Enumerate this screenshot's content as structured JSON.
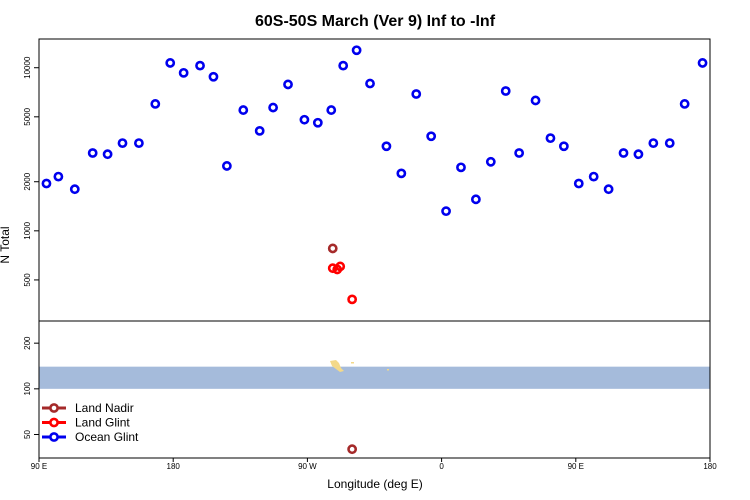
{
  "chart_data": {
    "type": "scatter",
    "title": "60S-50S March (Ver 9)   Inf to -Inf",
    "xlabel": "Longitude (deg E)",
    "ylabel": "N Total",
    "x_ticks": [
      {
        "value": 90,
        "label": "90 E"
      },
      {
        "value": 180,
        "label": "180"
      },
      {
        "value": 270,
        "label": "90 W"
      },
      {
        "value": 360,
        "label": "0"
      },
      {
        "value": 450,
        "label": "90 E"
      },
      {
        "value": 540,
        "label": "180"
      }
    ],
    "xlim": [
      90,
      540
    ],
    "y_scale": "log",
    "upper_panel": {
      "ylim": [
        280,
        15000
      ],
      "y_ticks": [
        500,
        1000,
        2000,
        5000,
        10000
      ]
    },
    "lower_panel": {
      "ylim": [
        35,
        280
      ],
      "y_ticks": [
        50,
        100,
        200
      ]
    },
    "map_strip": {
      "y_range": [
        100,
        140
      ],
      "color": "#a5bbdb",
      "land_color": "#f3d98a"
    },
    "series": [
      {
        "name": "Land Nadir",
        "color": "#a52a2a",
        "points": [
          {
            "x": 287,
            "y": 780
          },
          {
            "x": 300,
            "y": 40
          }
        ]
      },
      {
        "name": "Land Glint",
        "color": "#ff0000",
        "points": [
          {
            "x": 287,
            "y": 590
          },
          {
            "x": 290,
            "y": 580
          },
          {
            "x": 292,
            "y": 605
          },
          {
            "x": 300,
            "y": 380
          }
        ]
      },
      {
        "name": "Ocean Glint",
        "color": "#0000ee",
        "points": [
          {
            "x": 95,
            "y": 1950
          },
          {
            "x": 103,
            "y": 2150
          },
          {
            "x": 114,
            "y": 1800
          },
          {
            "x": 126,
            "y": 3000
          },
          {
            "x": 136,
            "y": 2950
          },
          {
            "x": 146,
            "y": 3450
          },
          {
            "x": 157,
            "y": 3450
          },
          {
            "x": 168,
            "y": 6000
          },
          {
            "x": 178,
            "y": 10700
          },
          {
            "x": 187,
            "y": 9300
          },
          {
            "x": 198,
            "y": 10300
          },
          {
            "x": 207,
            "y": 8800
          },
          {
            "x": 216,
            "y": 2500
          },
          {
            "x": 227,
            "y": 5500
          },
          {
            "x": 238,
            "y": 4100
          },
          {
            "x": 247,
            "y": 5700
          },
          {
            "x": 257,
            "y": 7900
          },
          {
            "x": 268,
            "y": 4800
          },
          {
            "x": 277,
            "y": 4600
          },
          {
            "x": 286,
            "y": 5500
          },
          {
            "x": 294,
            "y": 10300
          },
          {
            "x": 303,
            "y": 12800
          },
          {
            "x": 312,
            "y": 8000
          },
          {
            "x": 323,
            "y": 3300
          },
          {
            "x": 333,
            "y": 2250
          },
          {
            "x": 343,
            "y": 6900
          },
          {
            "x": 353,
            "y": 3800
          },
          {
            "x": 363,
            "y": 1320
          },
          {
            "x": 373,
            "y": 2450
          },
          {
            "x": 383,
            "y": 1560
          },
          {
            "x": 393,
            "y": 2650
          },
          {
            "x": 403,
            "y": 7200
          },
          {
            "x": 412,
            "y": 3000
          },
          {
            "x": 423,
            "y": 6300
          },
          {
            "x": 433,
            "y": 3700
          },
          {
            "x": 442,
            "y": 3300
          },
          {
            "x": 452,
            "y": 1950
          },
          {
            "x": 462,
            "y": 2150
          },
          {
            "x": 472,
            "y": 1800
          },
          {
            "x": 482,
            "y": 3000
          },
          {
            "x": 492,
            "y": 2950
          },
          {
            "x": 502,
            "y": 3450
          },
          {
            "x": 513,
            "y": 3450
          },
          {
            "x": 523,
            "y": 6000
          },
          {
            "x": 535,
            "y": 10700
          }
        ]
      }
    ],
    "legend_position": "bottom-left",
    "grid": false
  }
}
